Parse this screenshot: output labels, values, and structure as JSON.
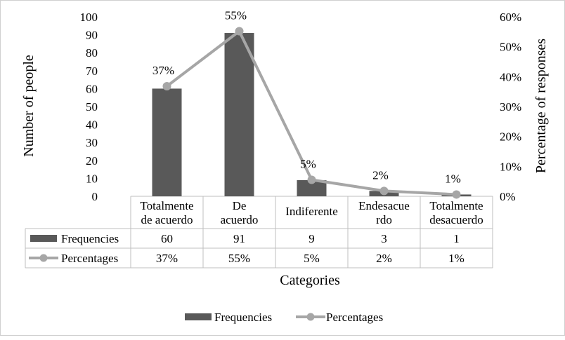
{
  "chart_data": {
    "type": "bar",
    "categories": [
      [
        "Totalmente",
        "de acuerdo"
      ],
      [
        "De",
        "acuerdo"
      ],
      [
        "Indiferente"
      ],
      [
        "Endesacue",
        "rdo"
      ],
      [
        "Totalmente",
        "desacuerdo"
      ]
    ],
    "series": [
      {
        "name": "Frequencies",
        "type": "bar",
        "axis": "left",
        "values": [
          60,
          91,
          9,
          3,
          1
        ],
        "table_values": [
          "60",
          "91",
          "9",
          "3",
          "1"
        ]
      },
      {
        "name": "Percentages",
        "type": "line",
        "axis": "right",
        "values": [
          36.8,
          55.2,
          5.5,
          1.8,
          0.6
        ],
        "table_values": [
          "37%",
          "55%",
          "5%",
          "2%",
          "1%"
        ],
        "data_labels": [
          "37%",
          "55%",
          "5%",
          "2%",
          "1%"
        ]
      }
    ],
    "xlabel": "Categories",
    "ylabel": "Number of people",
    "y2label": "Percentage of responses",
    "ylim": [
      0,
      100
    ],
    "y2lim": [
      0,
      60
    ],
    "yticks": [
      "0",
      "10",
      "20",
      "30",
      "40",
      "50",
      "60",
      "70",
      "80",
      "90",
      "100"
    ],
    "y2ticks": [
      "0%",
      "10%",
      "20%",
      "30%",
      "40%",
      "50%",
      "60%"
    ],
    "data_table": true,
    "legend_position": "bottom",
    "colors": {
      "bar": "#595959",
      "line": "#a6a6a6",
      "axis": "#bfbfbf",
      "table_border": "#bfbfbf"
    }
  }
}
